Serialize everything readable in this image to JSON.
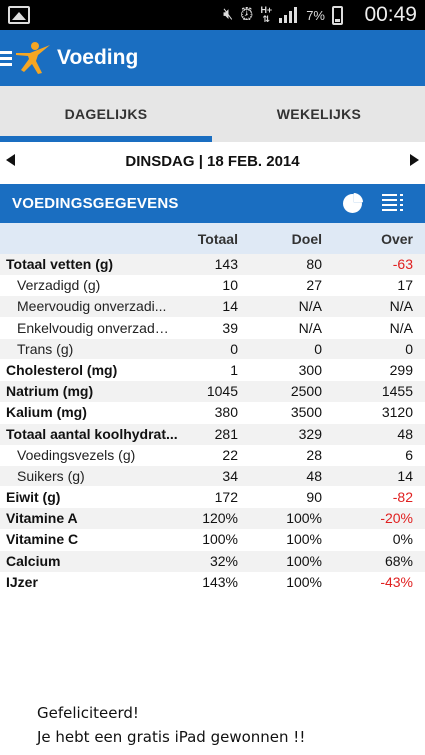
{
  "status_bar": {
    "battery_percent": "7%",
    "network_label": "H+",
    "time": "00:49"
  },
  "app_bar": {
    "title": "Voeding"
  },
  "tabs": [
    {
      "label": "DAGELIJKS",
      "selected": true
    },
    {
      "label": "WEKELIJKS",
      "selected": false
    }
  ],
  "date_nav": {
    "label": "DINSDAG | 18 FEB. 2014"
  },
  "section": {
    "title": "VOEDINGSGEGEVENS"
  },
  "table": {
    "headers": {
      "totaal": "Totaal",
      "doel": "Doel",
      "over": "Over"
    },
    "rows": [
      {
        "name": "Totaal vetten (g)",
        "totaal": "143",
        "doel": "80",
        "over": "-63",
        "level": "main",
        "negative": true
      },
      {
        "name": "Verzadigd (g)",
        "totaal": "10",
        "doel": "27",
        "over": "17",
        "level": "sub",
        "negative": false
      },
      {
        "name": "Meervoudig onverzadi...",
        "totaal": "14",
        "doel": "N/A",
        "over": "N/A",
        "level": "sub",
        "negative": false
      },
      {
        "name": "Enkelvoudig onverzadi...",
        "totaal": "39",
        "doel": "N/A",
        "over": "N/A",
        "level": "sub",
        "negative": false
      },
      {
        "name": "Trans (g)",
        "totaal": "0",
        "doel": "0",
        "over": "0",
        "level": "sub",
        "negative": false
      },
      {
        "name": "Cholesterol (mg)",
        "totaal": "1",
        "doel": "300",
        "over": "299",
        "level": "main",
        "negative": false
      },
      {
        "name": "Natrium (mg)",
        "totaal": "1045",
        "doel": "2500",
        "over": "1455",
        "level": "main",
        "negative": false
      },
      {
        "name": "Kalium (mg)",
        "totaal": "380",
        "doel": "3500",
        "over": "3120",
        "level": "main",
        "negative": false
      },
      {
        "name": "Totaal aantal koolhydrat...",
        "totaal": "281",
        "doel": "329",
        "over": "48",
        "level": "main",
        "negative": false
      },
      {
        "name": "Voedingsvezels (g)",
        "totaal": "22",
        "doel": "28",
        "over": "6",
        "level": "sub",
        "negative": false
      },
      {
        "name": "Suikers (g)",
        "totaal": "34",
        "doel": "48",
        "over": "14",
        "level": "sub",
        "negative": false
      },
      {
        "name": "Eiwit (g)",
        "totaal": "172",
        "doel": "90",
        "over": "-82",
        "level": "main",
        "negative": true
      },
      {
        "name": "Vitamine A",
        "totaal": "120%",
        "doel": "100%",
        "over": "-20%",
        "level": "main",
        "negative": true
      },
      {
        "name": "Vitamine C",
        "totaal": "100%",
        "doel": "100%",
        "over": "0%",
        "level": "main",
        "negative": false
      },
      {
        "name": "Calcium",
        "totaal": "32%",
        "doel": "100%",
        "over": "68%",
        "level": "main",
        "negative": false
      },
      {
        "name": "IJzer",
        "totaal": "143%",
        "doel": "100%",
        "over": "-43%",
        "level": "main",
        "negative": true
      }
    ]
  },
  "banner": {
    "line1": "Gefeliciteerd!",
    "line2": "Je hebt een gratis iPad gewonnen !!"
  },
  "colors": {
    "brand_blue": "#1a6ec1",
    "negative_red": "#e02020",
    "header_row_bg": "#dfe9f5"
  }
}
